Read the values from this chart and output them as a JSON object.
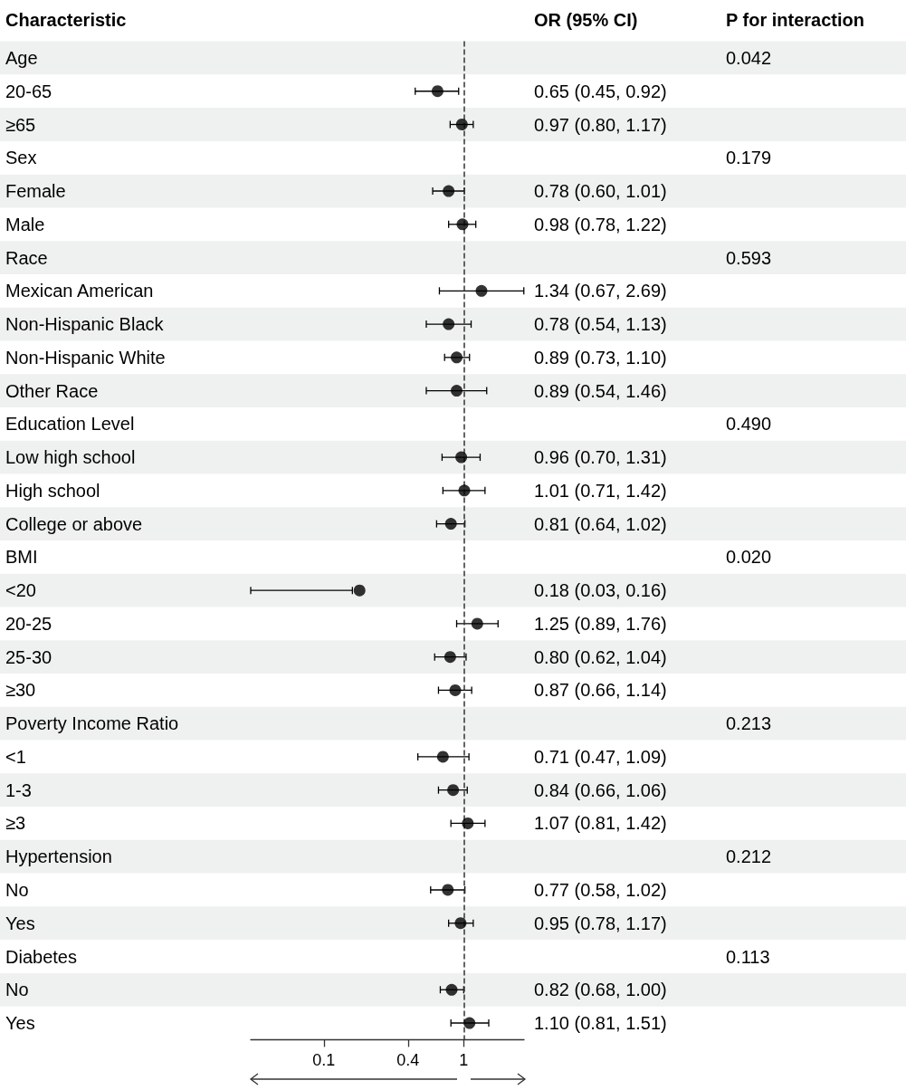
{
  "chart_data": {
    "type": "scatter",
    "ylabel": "Characteristic",
    "annotations": [
      "OR (95% CI)",
      "P for interaction",
      "0.042",
      "0.179",
      "0.593",
      "0.490",
      "0.020",
      "0.213",
      "0.212",
      "0.113"
    ],
    "categories": [
      "Age",
      "20-65",
      "≥65",
      "Sex",
      "Female",
      "Male",
      "Race",
      "Mexican American",
      "Non-Hispanic Black",
      "Non-Hispanic White",
      "Other Race",
      "Education Level",
      "Low high school",
      "High school",
      "College or above",
      "BMI",
      "<20",
      "20-25",
      "25-30",
      "≥30",
      "Poverty Income Ratio",
      "<1",
      "1-3",
      "≥3",
      "Hypertension",
      "No",
      "Yes",
      "Diabetes",
      "No",
      "Yes"
    ],
    "values": [
      null,
      0.65,
      0.97,
      null,
      0.78,
      0.98,
      null,
      1.34,
      0.78,
      0.89,
      0.89,
      null,
      0.96,
      1.01,
      0.81,
      null,
      0.18,
      1.25,
      0.8,
      0.87,
      null,
      0.71,
      0.84,
      1.07,
      null,
      0.77,
      0.95,
      null,
      0.82,
      1.1
    ],
    "errors": [
      null,
      [
        0.45,
        0.92
      ],
      [
        0.8,
        1.17
      ],
      null,
      [
        0.6,
        1.01
      ],
      [
        0.78,
        1.22
      ],
      null,
      [
        0.67,
        2.69
      ],
      [
        0.54,
        1.13
      ],
      [
        0.73,
        1.1
      ],
      [
        0.54,
        1.46
      ],
      null,
      [
        0.7,
        1.31
      ],
      [
        0.71,
        1.42
      ],
      [
        0.64,
        1.02
      ],
      null,
      [
        0.03,
        0.16
      ],
      [
        0.89,
        1.76
      ],
      [
        0.62,
        1.04
      ],
      [
        0.66,
        1.14
      ],
      null,
      [
        0.47,
        1.09
      ],
      [
        0.66,
        1.06
      ],
      [
        0.81,
        1.42
      ],
      null,
      [
        0.58,
        1.02
      ],
      [
        0.78,
        1.17
      ],
      null,
      [
        0.68,
        1.0
      ],
      [
        0.81,
        1.51
      ]
    ],
    "value_labels": [
      null,
      "0.65 (0.45, 0.92)",
      "0.97 (0.80, 1.17)",
      null,
      "0.78 (0.60, 1.01)",
      "0.98 (0.78, 1.22)",
      null,
      "1.34 (0.67, 2.69)",
      "0.78 (0.54, 1.13)",
      "0.89 (0.73, 1.10)",
      "0.89 (0.54, 1.46)",
      null,
      "0.96 (0.70, 1.31)",
      "1.01 (0.71, 1.42)",
      "0.81 (0.64, 1.02)",
      null,
      "0.18 (0.03, 0.16)",
      "1.25 (0.89, 1.76)",
      "0.80 (0.62, 1.04)",
      "0.87 (0.66, 1.14)",
      null,
      "0.71 (0.47, 1.09)",
      "0.84 (0.66, 1.06)",
      "1.07 (0.81, 1.42)",
      null,
      "0.77 (0.58, 1.02)",
      "0.95 (0.78, 1.17)",
      null,
      "0.82 (0.68, 1.00)",
      "1.10 (0.81, 1.51)"
    ],
    "color": "#000000",
    "marker": "circle",
    "orientation": "horizontal",
    "log": "x",
    "xlim": [
      0.03,
      2.7
    ],
    "xticks": [
      0.1,
      0.4,
      1
    ],
    "grid": false,
    "ref_lines": [
      {
        "axis": "x",
        "value": 1,
        "line_style": "dashed",
        "color": "#333333"
      }
    ]
  }
}
